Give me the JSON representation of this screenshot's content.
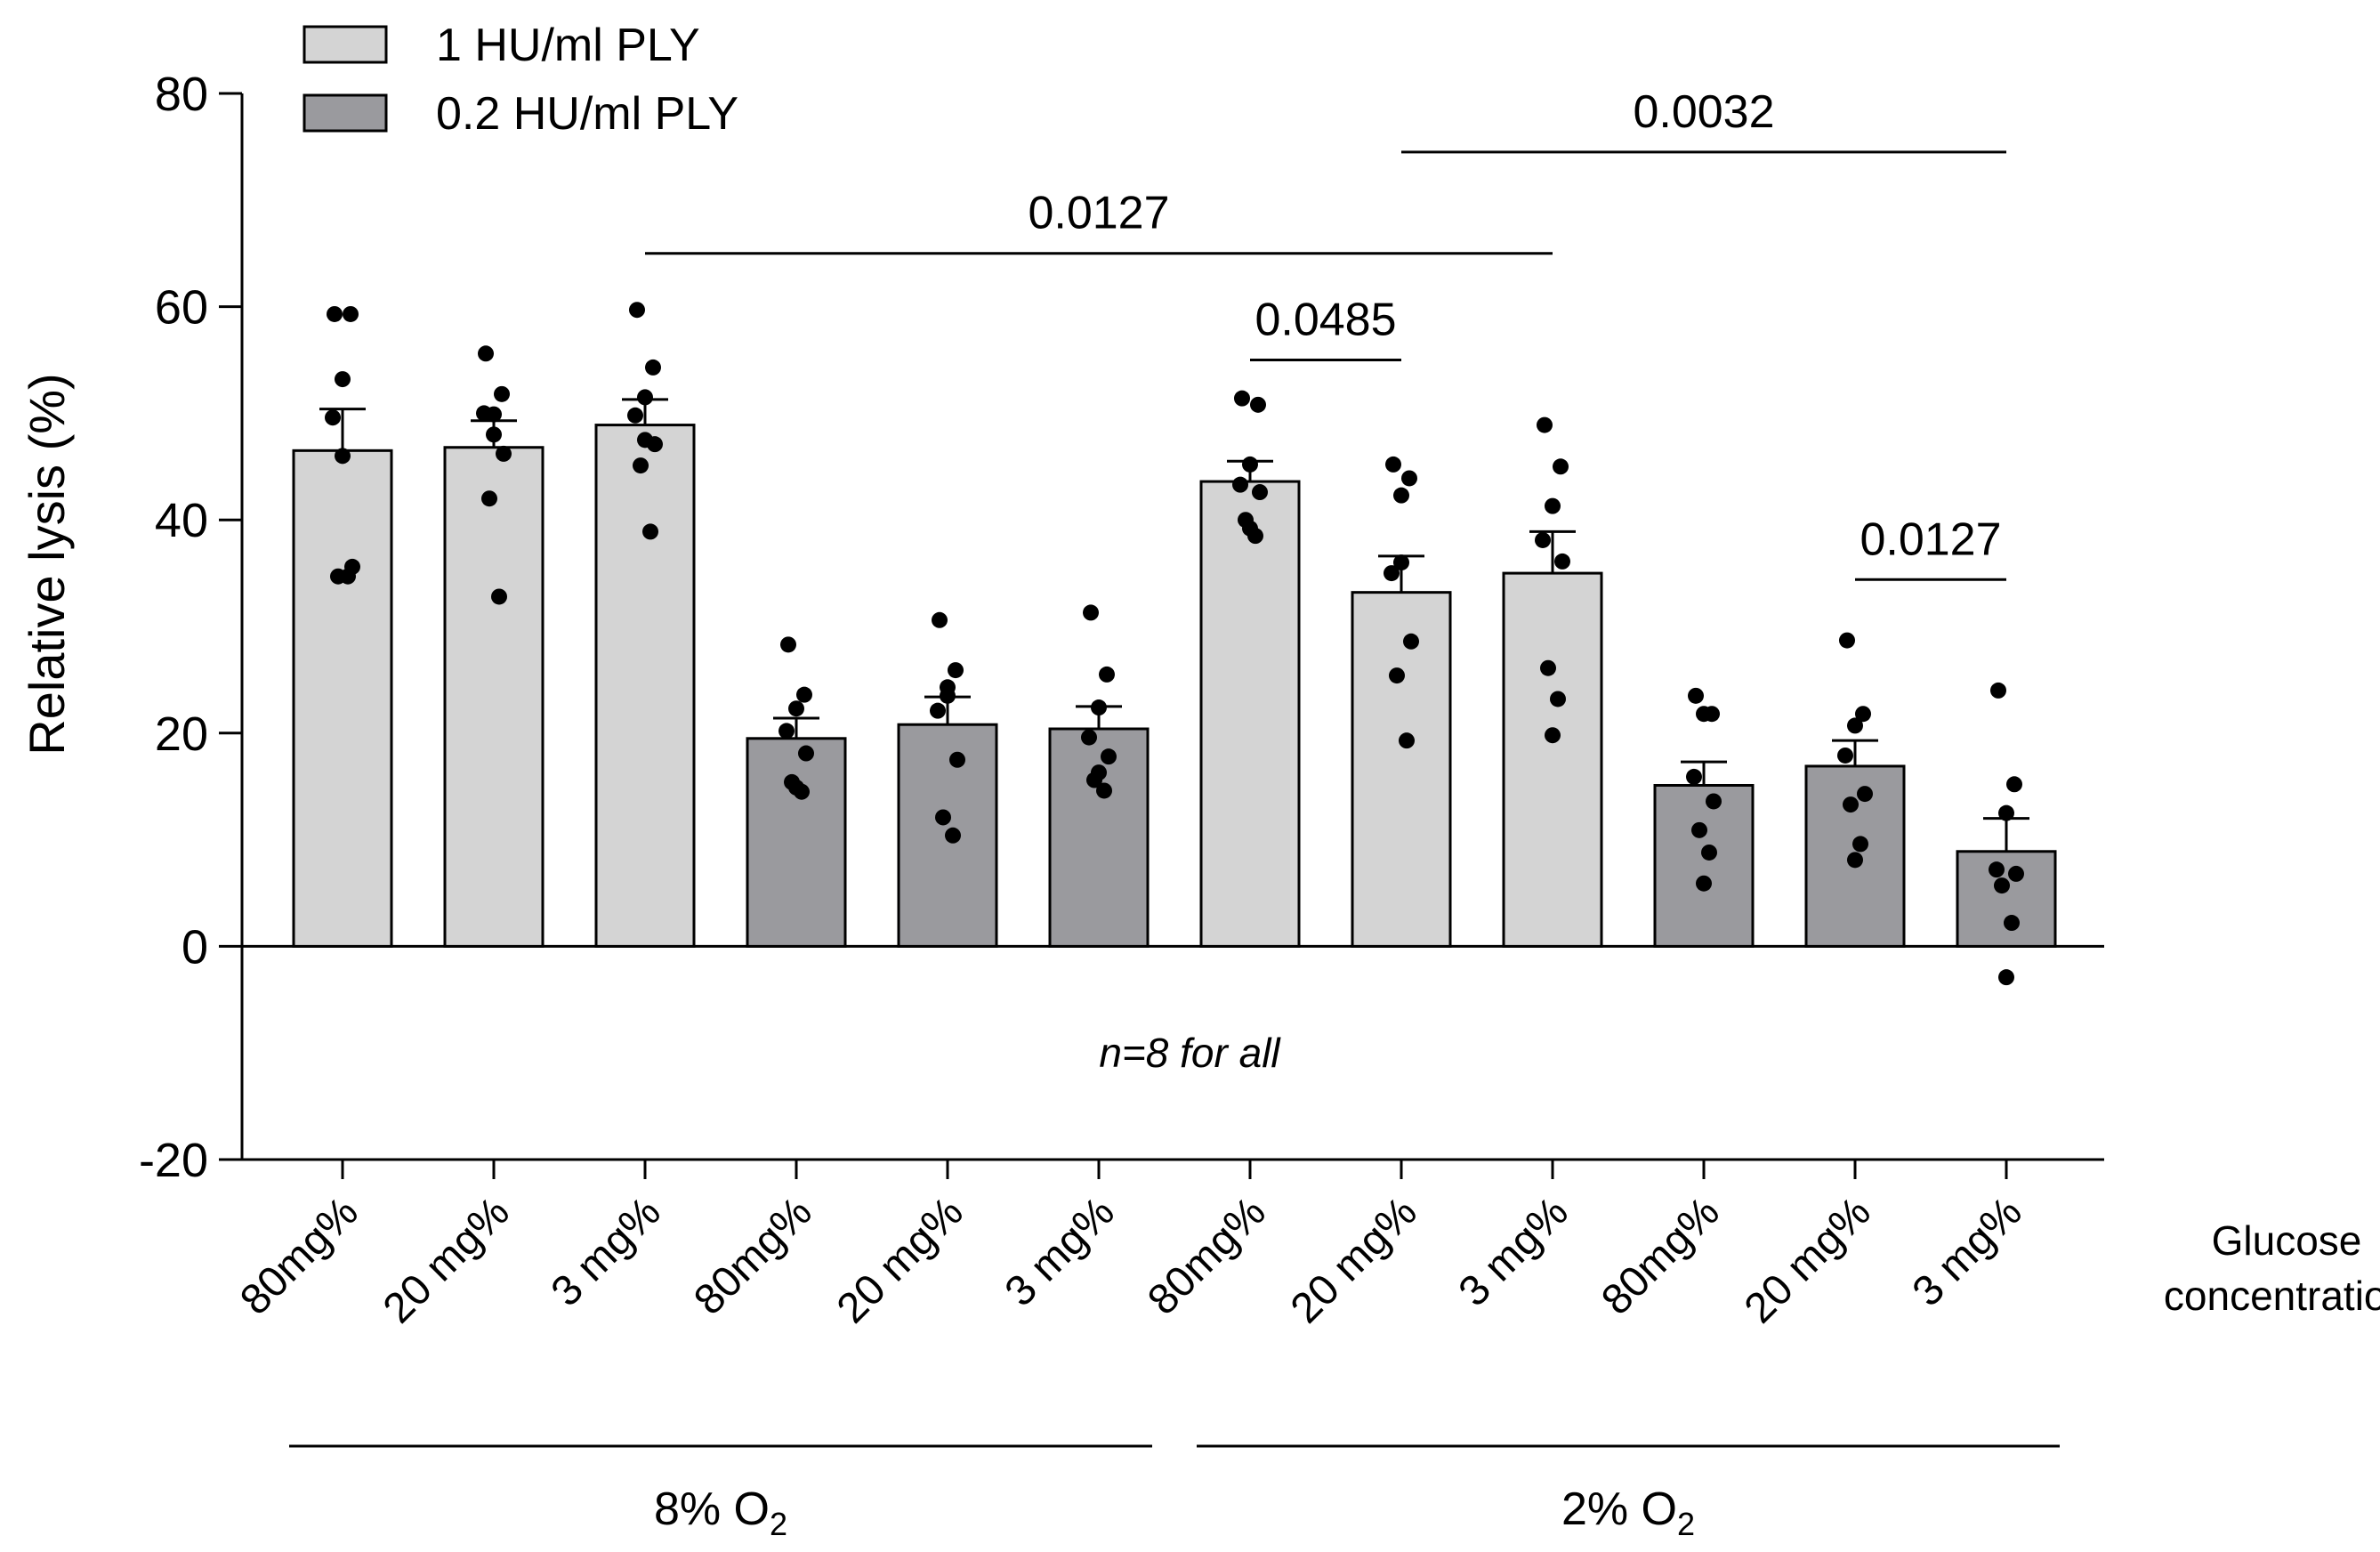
{
  "chart_data": {
    "type": "bar",
    "title": "",
    "xlabel": "",
    "ylabel": "Relative lysis (%)",
    "ylim": [
      -20,
      80
    ],
    "yticks": [
      -20,
      0,
      20,
      40,
      60,
      80
    ],
    "grid": false,
    "legend_position": "top-left",
    "categories": [
      "80mg%",
      "20 mg%",
      "3 mg%",
      "80mg%",
      "20 mg%",
      "3 mg%",
      "80mg%",
      "20 mg%",
      "3 mg%",
      "80mg%",
      "20 mg%",
      "3 mg%"
    ],
    "x_axis_side_label": [
      "Glucose",
      "concentration"
    ],
    "series": [
      {
        "name": "1 HU/ml PLY",
        "color": "#d4d4d4",
        "bar_indices": [
          0,
          1,
          2,
          6,
          7,
          8
        ]
      },
      {
        "name": "0.2 HU/ml PLY",
        "color": "#9a9a9e",
        "bar_indices": [
          3,
          4,
          5,
          9,
          10,
          11
        ]
      }
    ],
    "bars": [
      {
        "category": "80mg%",
        "series": "1 HU/ml PLY",
        "mean": 46.5,
        "sem": 3.9,
        "points": [
          59.3,
          59.3,
          53.2,
          49.6,
          35.6,
          34.7,
          34.7,
          46.0
        ]
      },
      {
        "category": "20 mg%",
        "series": "1 HU/ml PLY",
        "mean": 46.8,
        "sem": 2.5,
        "points": [
          55.6,
          51.8,
          49.9,
          50.0,
          46.2,
          42.0,
          32.8,
          48.0
        ]
      },
      {
        "category": "3 mg%",
        "series": "1 HU/ml PLY",
        "mean": 48.9,
        "sem": 2.4,
        "points": [
          59.7,
          54.3,
          51.5,
          49.8,
          47.1,
          45.1,
          38.9,
          47.5
        ]
      },
      {
        "category": "80mg%",
        "series": "0.2 HU/ml PLY",
        "mean": 19.5,
        "sem": 1.9,
        "points": [
          28.3,
          23.6,
          22.3,
          20.2,
          18.1,
          15.4,
          14.5,
          14.9
        ]
      },
      {
        "category": "20 mg%",
        "series": "0.2 HU/ml PLY",
        "mean": 20.8,
        "sem": 2.6,
        "points": [
          30.6,
          25.9,
          24.3,
          22.1,
          17.5,
          12.1,
          10.4,
          23.5
        ]
      },
      {
        "category": "3 mg%",
        "series": "0.2 HU/ml PLY",
        "mean": 20.4,
        "sem": 2.1,
        "points": [
          31.3,
          25.5,
          22.4,
          19.6,
          17.8,
          15.6,
          14.6,
          16.3
        ]
      },
      {
        "category": "80mg%",
        "series": "1 HU/ml PLY",
        "mean": 43.6,
        "sem": 1.9,
        "points": [
          51.4,
          50.8,
          45.2,
          43.3,
          42.6,
          40.0,
          38.5,
          39.2
        ]
      },
      {
        "category": "20 mg%",
        "series": "1 HU/ml PLY",
        "mean": 33.2,
        "sem": 3.4,
        "points": [
          45.2,
          43.9,
          42.3,
          35.0,
          28.6,
          25.4,
          19.3,
          36.0
        ]
      },
      {
        "category": "3 mg%",
        "series": "1 HU/ml PLY",
        "mean": 35.0,
        "sem": 3.9,
        "points": [
          48.9,
          45.0,
          41.3,
          38.1,
          36.1,
          26.1,
          23.2,
          19.8
        ]
      },
      {
        "category": "80mg%",
        "series": "0.2 HU/ml PLY",
        "mean": 15.1,
        "sem": 2.2,
        "points": [
          23.5,
          21.8,
          21.8,
          15.9,
          13.6,
          10.9,
          8.8,
          5.9
        ]
      },
      {
        "category": "20 mg%",
        "series": "0.2 HU/ml PLY",
        "mean": 16.9,
        "sem": 2.4,
        "points": [
          28.7,
          21.8,
          20.7,
          17.9,
          14.3,
          13.3,
          9.6,
          8.1
        ]
      },
      {
        "category": "3 mg%",
        "series": "0.2 HU/ml PLY",
        "mean": 8.9,
        "sem": 3.1,
        "points": [
          24.0,
          15.2,
          12.5,
          7.2,
          6.8,
          5.7,
          2.2,
          -2.9
        ]
      }
    ],
    "significance": [
      {
        "from": 7,
        "to": 11,
        "y": 74.5,
        "label": "0.0032"
      },
      {
        "from": 2,
        "to": 8,
        "y": 65.0,
        "label": "0.0127"
      },
      {
        "from": 6,
        "to": 7,
        "y": 55.0,
        "label": "0.0485"
      },
      {
        "from": 10,
        "to": 11,
        "y": 34.4,
        "label": "0.0127"
      }
    ],
    "groups": [
      {
        "label_base": "8% O",
        "label_sub": "2",
        "from": 0,
        "to": 5
      },
      {
        "label_base": "2% O",
        "label_sub": "2",
        "from": 6,
        "to": 11
      }
    ],
    "annotations": [
      {
        "text": "n=8 for all",
        "x_category_index": 5.6,
        "y": -10
      }
    ]
  }
}
